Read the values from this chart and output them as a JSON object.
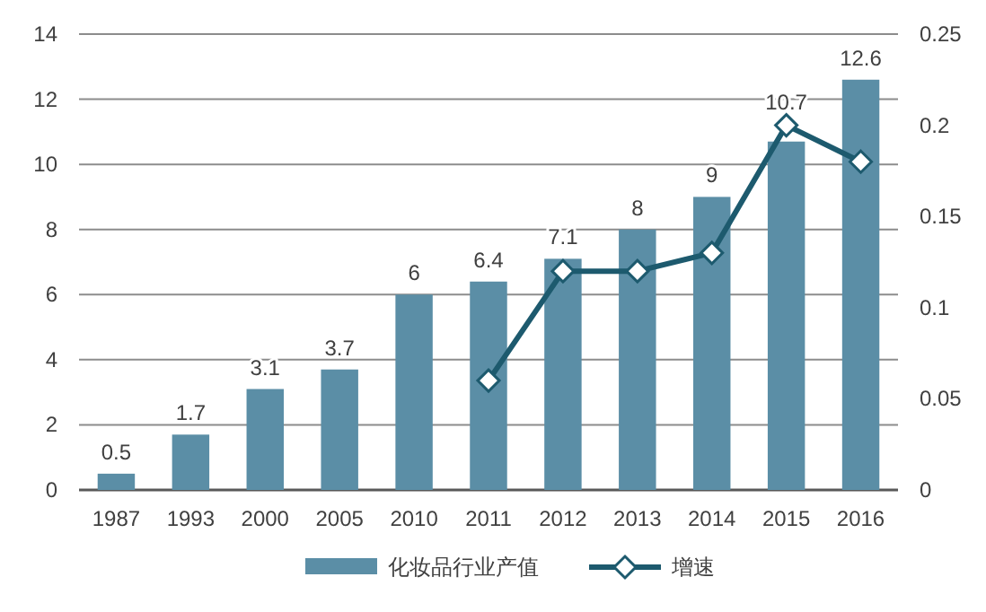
{
  "chart_data": {
    "type": "bar",
    "categories": [
      "1987",
      "1993",
      "2000",
      "2005",
      "2010",
      "2011",
      "2012",
      "2013",
      "2014",
      "2015",
      "2016"
    ],
    "series": [
      {
        "name": "化妆品行业产值",
        "color": "#5b8ea6",
        "values": [
          0.5,
          1.7,
          3.1,
          3.7,
          6,
          6.4,
          7.1,
          8,
          9,
          10.7,
          12.6
        ],
        "value_labels": [
          "0.5",
          "1.7",
          "3.1",
          "3.7",
          "6",
          "6.4",
          "7.1",
          "8",
          "9",
          "10.7",
          "12.6"
        ]
      },
      {
        "name": "增速",
        "type": "line",
        "axis": "y2",
        "color": "#1d5a6e",
        "values": [
          null,
          null,
          null,
          null,
          null,
          0.06,
          0.12,
          0.12,
          0.13,
          0.2,
          0.18
        ]
      }
    ],
    "ylim": [
      0,
      14
    ],
    "yticks": [
      0,
      2,
      4,
      6,
      8,
      10,
      12,
      14
    ],
    "y2lim": [
      0,
      0.25
    ],
    "y2ticks": [
      0,
      0.05,
      0.1,
      0.15,
      0.2,
      0.25
    ],
    "grid": "y",
    "legend": "bottom",
    "marker": "diamond",
    "line_style": "solid"
  }
}
